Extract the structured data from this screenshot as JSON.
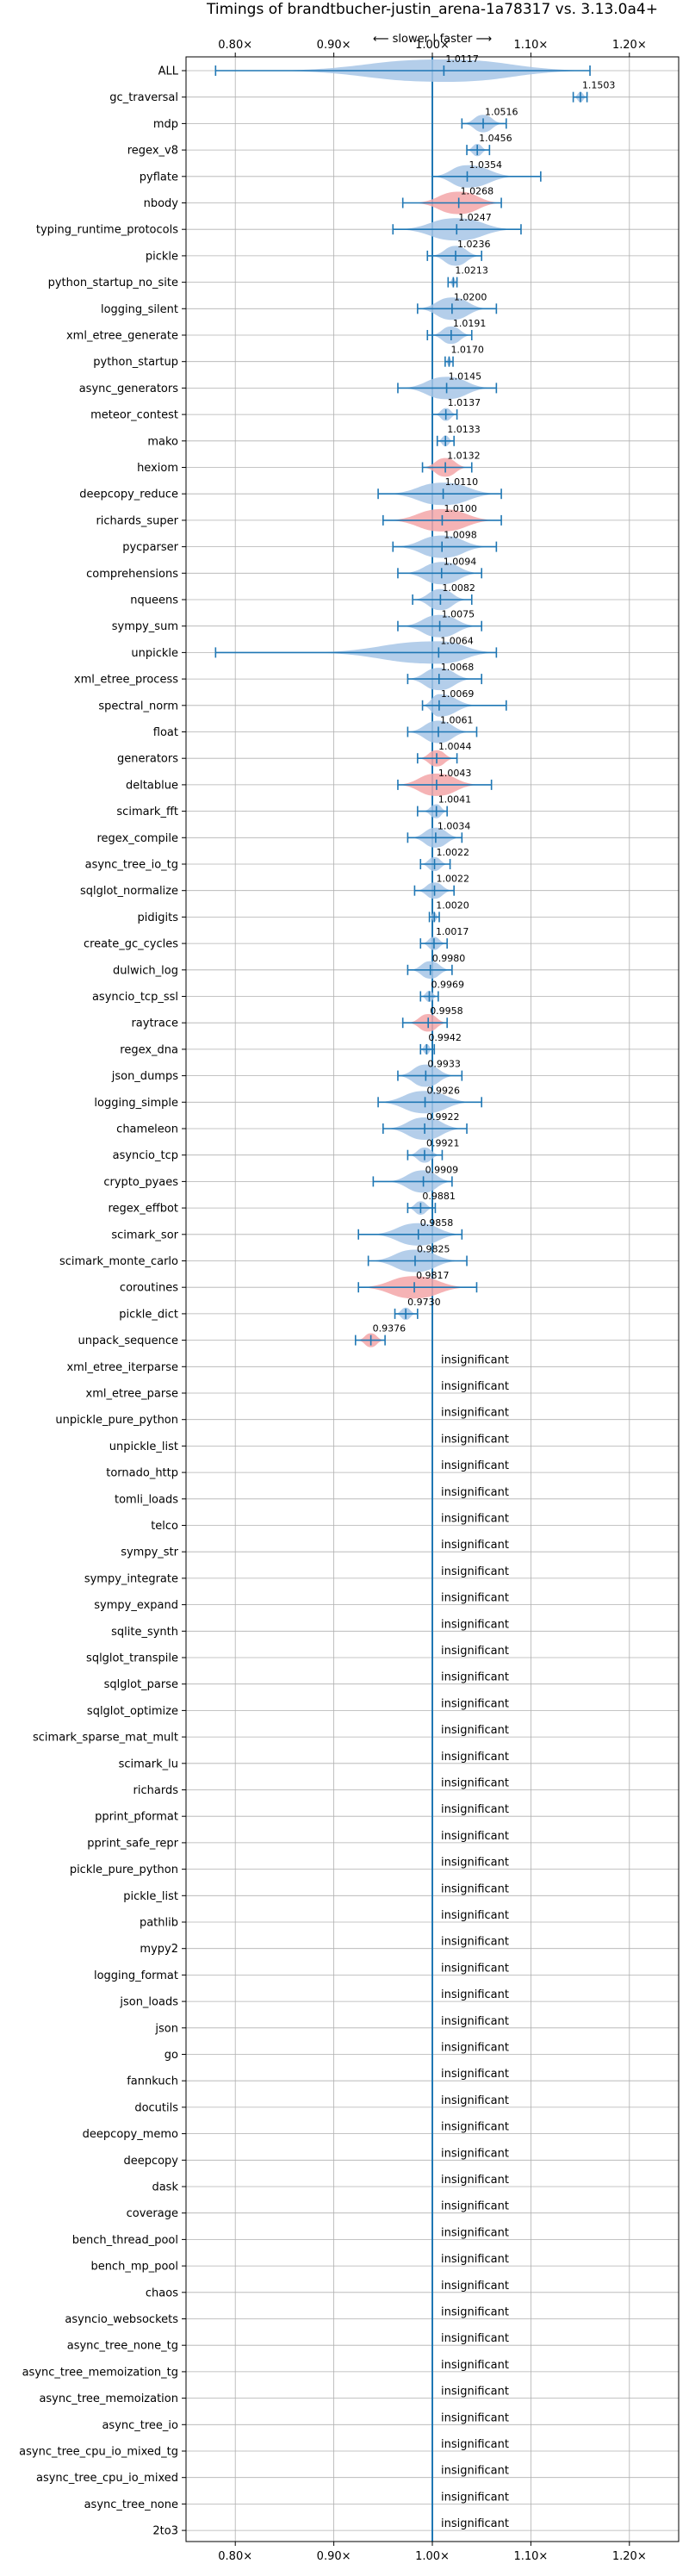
{
  "chart_data": {
    "type": "violin",
    "title": "Timings of brandtbucher-justin_arena-1a78317 vs. 3.13.0a4+",
    "direction_label": "⟵ slower | faster ⟶",
    "xlim": [
      0.75,
      1.25
    ],
    "xticks": [
      0.8,
      0.9,
      1.0,
      1.1,
      1.2
    ],
    "xtick_labels": [
      "0.80×",
      "0.90×",
      "1.00×",
      "1.10×",
      "1.20×"
    ],
    "grid": true,
    "colors": {
      "faster_fill": "#a7c6e6",
      "slower_fill": "#f3a6a8",
      "line": "#1f77b4",
      "grid": "#b0b0b0",
      "reference": "#1f77b4"
    },
    "insignificant_label": "insignificant",
    "benchmarks": [
      {
        "name": "ALL",
        "value": 1.0117,
        "label": "1.0117",
        "lo": 0.78,
        "hi": 1.16,
        "color": "blue",
        "significant": true
      },
      {
        "name": "gc_traversal",
        "value": 1.1503,
        "label": "1.1503",
        "lo": 1.143,
        "hi": 1.157,
        "color": "blue",
        "significant": true
      },
      {
        "name": "mdp",
        "value": 1.0516,
        "label": "1.0516",
        "lo": 1.03,
        "hi": 1.075,
        "color": "blue",
        "significant": true
      },
      {
        "name": "regex_v8",
        "value": 1.0456,
        "label": "1.0456",
        "lo": 1.035,
        "hi": 1.058,
        "color": "blue",
        "significant": true
      },
      {
        "name": "pyflate",
        "value": 1.0354,
        "label": "1.0354",
        "lo": 1.0,
        "hi": 1.11,
        "color": "blue",
        "significant": true
      },
      {
        "name": "nbody",
        "value": 1.0268,
        "label": "1.0268",
        "lo": 0.97,
        "hi": 1.07,
        "color": "red",
        "significant": true
      },
      {
        "name": "typing_runtime_protocols",
        "value": 1.0247,
        "label": "1.0247",
        "lo": 0.96,
        "hi": 1.09,
        "color": "blue",
        "significant": true
      },
      {
        "name": "pickle",
        "value": 1.0236,
        "label": "1.0236",
        "lo": 0.995,
        "hi": 1.05,
        "color": "blue",
        "significant": true
      },
      {
        "name": "python_startup_no_site",
        "value": 1.0213,
        "label": "1.0213",
        "lo": 1.016,
        "hi": 1.025,
        "color": "blue",
        "significant": true
      },
      {
        "name": "logging_silent",
        "value": 1.02,
        "label": "1.0200",
        "lo": 0.985,
        "hi": 1.065,
        "color": "blue",
        "significant": true
      },
      {
        "name": "xml_etree_generate",
        "value": 1.0191,
        "label": "1.0191",
        "lo": 0.995,
        "hi": 1.04,
        "color": "blue",
        "significant": true
      },
      {
        "name": "python_startup",
        "value": 1.017,
        "label": "1.0170",
        "lo": 1.013,
        "hi": 1.021,
        "color": "blue",
        "significant": true
      },
      {
        "name": "async_generators",
        "value": 1.0145,
        "label": "1.0145",
        "lo": 0.965,
        "hi": 1.065,
        "color": "blue",
        "significant": true
      },
      {
        "name": "meteor_contest",
        "value": 1.0137,
        "label": "1.0137",
        "lo": 1.0,
        "hi": 1.025,
        "color": "blue",
        "significant": true
      },
      {
        "name": "mako",
        "value": 1.0133,
        "label": "1.0133",
        "lo": 1.005,
        "hi": 1.022,
        "color": "blue",
        "significant": true
      },
      {
        "name": "hexiom",
        "value": 1.0132,
        "label": "1.0132",
        "lo": 0.99,
        "hi": 1.04,
        "color": "red",
        "significant": true
      },
      {
        "name": "deepcopy_reduce",
        "value": 1.011,
        "label": "1.0110",
        "lo": 0.945,
        "hi": 1.07,
        "color": "blue",
        "significant": true
      },
      {
        "name": "richards_super",
        "value": 1.01,
        "label": "1.0100",
        "lo": 0.95,
        "hi": 1.07,
        "color": "red",
        "significant": true
      },
      {
        "name": "pycparser",
        "value": 1.0098,
        "label": "1.0098",
        "lo": 0.96,
        "hi": 1.065,
        "color": "blue",
        "significant": true
      },
      {
        "name": "comprehensions",
        "value": 1.0094,
        "label": "1.0094",
        "lo": 0.965,
        "hi": 1.05,
        "color": "blue",
        "significant": true
      },
      {
        "name": "nqueens",
        "value": 1.0082,
        "label": "1.0082",
        "lo": 0.98,
        "hi": 1.04,
        "color": "blue",
        "significant": true
      },
      {
        "name": "sympy_sum",
        "value": 1.0075,
        "label": "1.0075",
        "lo": 0.965,
        "hi": 1.05,
        "color": "blue",
        "significant": true
      },
      {
        "name": "unpickle",
        "value": 1.0064,
        "label": "1.0064",
        "lo": 0.78,
        "hi": 1.065,
        "color": "blue",
        "significant": true
      },
      {
        "name": "xml_etree_process",
        "value": 1.0068,
        "label": "1.0068",
        "lo": 0.975,
        "hi": 1.05,
        "color": "blue",
        "significant": true
      },
      {
        "name": "spectral_norm",
        "value": 1.0069,
        "label": "1.0069",
        "lo": 0.99,
        "hi": 1.075,
        "color": "blue",
        "significant": true
      },
      {
        "name": "float",
        "value": 1.0061,
        "label": "1.0061",
        "lo": 0.975,
        "hi": 1.045,
        "color": "blue",
        "significant": true
      },
      {
        "name": "generators",
        "value": 1.0044,
        "label": "1.0044",
        "lo": 0.985,
        "hi": 1.025,
        "color": "red",
        "significant": true
      },
      {
        "name": "deltablue",
        "value": 1.0043,
        "label": "1.0043",
        "lo": 0.965,
        "hi": 1.06,
        "color": "red",
        "significant": true
      },
      {
        "name": "scimark_fft",
        "value": 1.0041,
        "label": "1.0041",
        "lo": 0.985,
        "hi": 1.015,
        "color": "blue",
        "significant": true
      },
      {
        "name": "regex_compile",
        "value": 1.0034,
        "label": "1.0034",
        "lo": 0.975,
        "hi": 1.03,
        "color": "blue",
        "significant": true
      },
      {
        "name": "async_tree_io_tg",
        "value": 1.0022,
        "label": "1.0022",
        "lo": 0.988,
        "hi": 1.018,
        "color": "blue",
        "significant": true
      },
      {
        "name": "sqlglot_normalize",
        "value": 1.0022,
        "label": "1.0022",
        "lo": 0.982,
        "hi": 1.022,
        "color": "blue",
        "significant": true
      },
      {
        "name": "pidigits",
        "value": 1.002,
        "label": "1.0020",
        "lo": 0.997,
        "hi": 1.007,
        "color": "blue",
        "significant": true
      },
      {
        "name": "create_gc_cycles",
        "value": 1.0017,
        "label": "1.0017",
        "lo": 0.988,
        "hi": 1.015,
        "color": "blue",
        "significant": true
      },
      {
        "name": "dulwich_log",
        "value": 0.998,
        "label": "0.9980",
        "lo": 0.975,
        "hi": 1.02,
        "color": "blue",
        "significant": true
      },
      {
        "name": "asyncio_tcp_ssl",
        "value": 0.9969,
        "label": "0.9969",
        "lo": 0.988,
        "hi": 1.006,
        "color": "blue",
        "significant": true
      },
      {
        "name": "raytrace",
        "value": 0.9958,
        "label": "0.9958",
        "lo": 0.97,
        "hi": 1.015,
        "color": "red",
        "significant": true
      },
      {
        "name": "regex_dna",
        "value": 0.9942,
        "label": "0.9942",
        "lo": 0.988,
        "hi": 1.002,
        "color": "blue",
        "significant": true
      },
      {
        "name": "json_dumps",
        "value": 0.9933,
        "label": "0.9933",
        "lo": 0.965,
        "hi": 1.03,
        "color": "blue",
        "significant": true
      },
      {
        "name": "logging_simple",
        "value": 0.9926,
        "label": "0.9926",
        "lo": 0.945,
        "hi": 1.05,
        "color": "blue",
        "significant": true
      },
      {
        "name": "chameleon",
        "value": 0.9922,
        "label": "0.9922",
        "lo": 0.95,
        "hi": 1.035,
        "color": "blue",
        "significant": true
      },
      {
        "name": "asyncio_tcp",
        "value": 0.9921,
        "label": "0.9921",
        "lo": 0.975,
        "hi": 1.01,
        "color": "blue",
        "significant": true
      },
      {
        "name": "crypto_pyaes",
        "value": 0.9909,
        "label": "0.9909",
        "lo": 0.94,
        "hi": 1.02,
        "color": "blue",
        "significant": true
      },
      {
        "name": "regex_effbot",
        "value": 0.9881,
        "label": "0.9881",
        "lo": 0.975,
        "hi": 1.003,
        "color": "blue",
        "significant": true
      },
      {
        "name": "scimark_sor",
        "value": 0.9858,
        "label": "0.9858",
        "lo": 0.925,
        "hi": 1.03,
        "color": "blue",
        "significant": true
      },
      {
        "name": "scimark_monte_carlo",
        "value": 0.9825,
        "label": "0.9825",
        "lo": 0.935,
        "hi": 1.035,
        "color": "blue",
        "significant": true
      },
      {
        "name": "coroutines",
        "value": 0.9817,
        "label": "0.9817",
        "lo": 0.925,
        "hi": 1.045,
        "color": "red",
        "significant": true
      },
      {
        "name": "pickle_dict",
        "value": 0.973,
        "label": "0.9730",
        "lo": 0.962,
        "hi": 0.985,
        "color": "blue",
        "significant": true
      },
      {
        "name": "unpack_sequence",
        "value": 0.9376,
        "label": "0.9376",
        "lo": 0.922,
        "hi": 0.952,
        "color": "red",
        "significant": true
      },
      {
        "name": "xml_etree_iterparse",
        "significant": false
      },
      {
        "name": "xml_etree_parse",
        "significant": false
      },
      {
        "name": "unpickle_pure_python",
        "significant": false
      },
      {
        "name": "unpickle_list",
        "significant": false
      },
      {
        "name": "tornado_http",
        "significant": false
      },
      {
        "name": "tomli_loads",
        "significant": false
      },
      {
        "name": "telco",
        "significant": false
      },
      {
        "name": "sympy_str",
        "significant": false
      },
      {
        "name": "sympy_integrate",
        "significant": false
      },
      {
        "name": "sympy_expand",
        "significant": false
      },
      {
        "name": "sqlite_synth",
        "significant": false
      },
      {
        "name": "sqlglot_transpile",
        "significant": false
      },
      {
        "name": "sqlglot_parse",
        "significant": false
      },
      {
        "name": "sqlglot_optimize",
        "significant": false
      },
      {
        "name": "scimark_sparse_mat_mult",
        "significant": false
      },
      {
        "name": "scimark_lu",
        "significant": false
      },
      {
        "name": "richards",
        "significant": false
      },
      {
        "name": "pprint_pformat",
        "significant": false
      },
      {
        "name": "pprint_safe_repr",
        "significant": false
      },
      {
        "name": "pickle_pure_python",
        "significant": false
      },
      {
        "name": "pickle_list",
        "significant": false
      },
      {
        "name": "pathlib",
        "significant": false
      },
      {
        "name": "mypy2",
        "significant": false
      },
      {
        "name": "logging_format",
        "significant": false
      },
      {
        "name": "json_loads",
        "significant": false
      },
      {
        "name": "json",
        "significant": false
      },
      {
        "name": "go",
        "significant": false
      },
      {
        "name": "fannkuch",
        "significant": false
      },
      {
        "name": "docutils",
        "significant": false
      },
      {
        "name": "deepcopy_memo",
        "significant": false
      },
      {
        "name": "deepcopy",
        "significant": false
      },
      {
        "name": "dask",
        "significant": false
      },
      {
        "name": "coverage",
        "significant": false
      },
      {
        "name": "bench_thread_pool",
        "significant": false
      },
      {
        "name": "bench_mp_pool",
        "significant": false
      },
      {
        "name": "chaos",
        "significant": false
      },
      {
        "name": "asyncio_websockets",
        "significant": false
      },
      {
        "name": "async_tree_none_tg",
        "significant": false
      },
      {
        "name": "async_tree_memoization_tg",
        "significant": false
      },
      {
        "name": "async_tree_memoization",
        "significant": false
      },
      {
        "name": "async_tree_io",
        "significant": false
      },
      {
        "name": "async_tree_cpu_io_mixed_tg",
        "significant": false
      },
      {
        "name": "async_tree_cpu_io_mixed",
        "significant": false
      },
      {
        "name": "async_tree_none",
        "significant": false
      },
      {
        "name": "2to3",
        "significant": false
      }
    ]
  }
}
